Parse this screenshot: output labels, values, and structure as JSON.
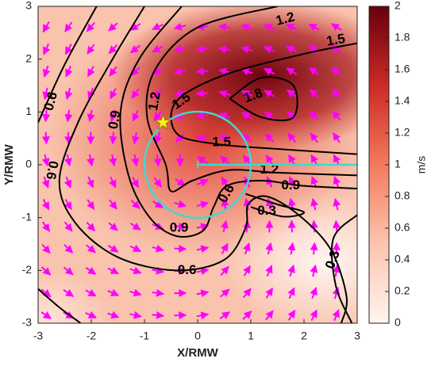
{
  "chart_data": {
    "type": "contour",
    "xlabel": "X/RMW",
    "ylabel": "Y/RMW",
    "xlim": [
      -3,
      3
    ],
    "ylim": [
      -3,
      3
    ],
    "xticks": [
      -3,
      -2,
      -1,
      0,
      1,
      2,
      3
    ],
    "yticks": [
      -3,
      -2,
      -1,
      0,
      1,
      2,
      3
    ],
    "colorbar": {
      "label": "m/s",
      "lim": [
        0,
        2
      ],
      "ticks": [
        0,
        0.2,
        0.4,
        0.6,
        0.8,
        1,
        1.2,
        1.4,
        1.6,
        1.8,
        2
      ]
    },
    "contours": [
      {
        "level": 0.3
      },
      {
        "level": 0.6
      },
      {
        "level": 0.9
      },
      {
        "level": 1.2
      },
      {
        "level": 1.5
      },
      {
        "level": 1.8
      }
    ],
    "quiver_color": "#ff00ff",
    "circle": {
      "x": 0,
      "y": 0,
      "r": 1,
      "color": "#40d8d0"
    },
    "line": {
      "x": [
        0,
        3
      ],
      "y": [
        0,
        0
      ]
    },
    "star": {
      "x": -0.65,
      "y": 0.8,
      "color": "#ffee22"
    }
  }
}
